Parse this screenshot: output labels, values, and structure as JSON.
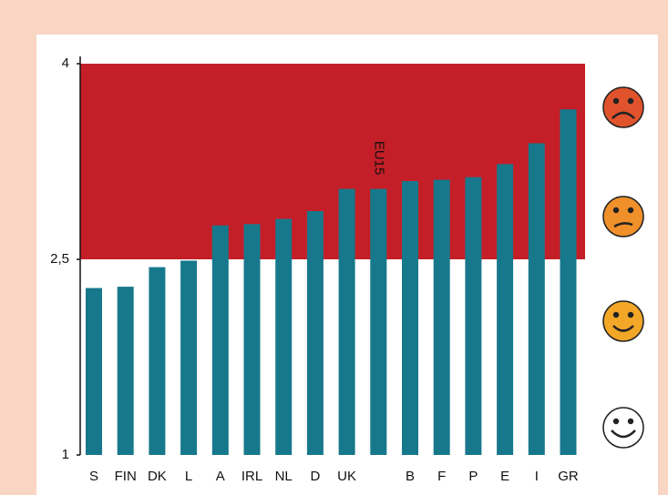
{
  "chart_data": {
    "type": "bar",
    "categories": [
      "S",
      "FIN",
      "DK",
      "L",
      "A",
      "IRL",
      "NL",
      "D",
      "UK",
      null,
      "B",
      "F",
      "P",
      "E",
      "I",
      "GR"
    ],
    "values": [
      2.28,
      2.29,
      2.44,
      2.49,
      2.76,
      2.77,
      2.81,
      2.87,
      3.04,
      3.04,
      3.1,
      3.11,
      3.13,
      3.23,
      3.39,
      3.65
    ],
    "color": "#17788b",
    "annotation": "EU15",
    "annotation_index": 9,
    "band": {
      "from": 2.5,
      "to": 4,
      "color": "#c41f28"
    },
    "ylim": [
      1,
      4
    ],
    "yticks": [
      1,
      {
        "value": 2.5,
        "label": "2,5"
      },
      4
    ]
  }
}
